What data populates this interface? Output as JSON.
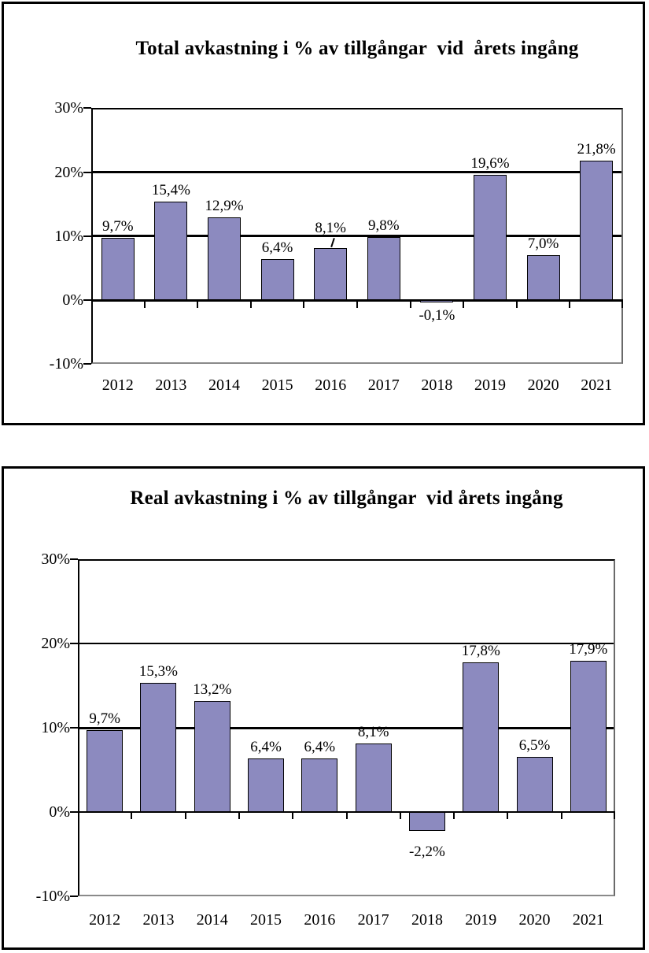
{
  "page": {
    "background": "#ffffff"
  },
  "chart_data": [
    {
      "type": "bar",
      "title": "Total avkastning i % av tillgångar  vid  årets ingång",
      "categories": [
        "2012",
        "2013",
        "2014",
        "2015",
        "2016",
        "2017",
        "2018",
        "2019",
        "2020",
        "2021"
      ],
      "values": [
        9.7,
        15.4,
        12.9,
        6.4,
        8.1,
        9.8,
        -0.1,
        19.6,
        7.0,
        21.8
      ],
      "value_labels": [
        "9,7%",
        "15,4%",
        "12,9%",
        "6,4%",
        "8,1%",
        "9,8%",
        "-0,1%",
        "19,6%",
        "7,0%",
        "21,8%"
      ],
      "xlabel": "",
      "ylabel": "",
      "ylim": [
        -10,
        30
      ],
      "y_ticks": [
        {
          "value": 30,
          "label": "30%"
        },
        {
          "value": 20,
          "label": "20%"
        },
        {
          "value": 10,
          "label": "10%"
        },
        {
          "value": 0,
          "label": "0%"
        },
        {
          "value": -10,
          "label": "-10%"
        }
      ],
      "gridline_values": [
        20,
        10
      ],
      "grid": "on",
      "legend": "none",
      "bar_color": "#8c8abf",
      "bar_border_color": "#000000"
    },
    {
      "type": "bar",
      "title": "Real avkastning i % av tillgångar  vid årets ingång",
      "categories": [
        "2012",
        "2013",
        "2014",
        "2015",
        "2016",
        "2017",
        "2018",
        "2019",
        "2020",
        "2021"
      ],
      "values": [
        9.7,
        15.3,
        13.2,
        6.4,
        6.4,
        8.1,
        -2.2,
        17.8,
        6.5,
        17.9
      ],
      "value_labels": [
        "9,7%",
        "15,3%",
        "13,2%",
        "6,4%",
        "6,4%",
        "8,1%",
        "-2,2%",
        "17,8%",
        "6,5%",
        "17,9%"
      ],
      "xlabel": "",
      "ylabel": "",
      "ylim": [
        -10,
        30
      ],
      "y_ticks": [
        {
          "value": 30,
          "label": "30%"
        },
        {
          "value": 20,
          "label": "20%"
        },
        {
          "value": 10,
          "label": "10%"
        },
        {
          "value": 0,
          "label": "0%"
        },
        {
          "value": -10,
          "label": "-10%"
        }
      ],
      "gridline_values": [
        20,
        10
      ],
      "grid": "on",
      "legend": "none",
      "bar_color": "#8c8abf",
      "bar_border_color": "#000000"
    }
  ]
}
